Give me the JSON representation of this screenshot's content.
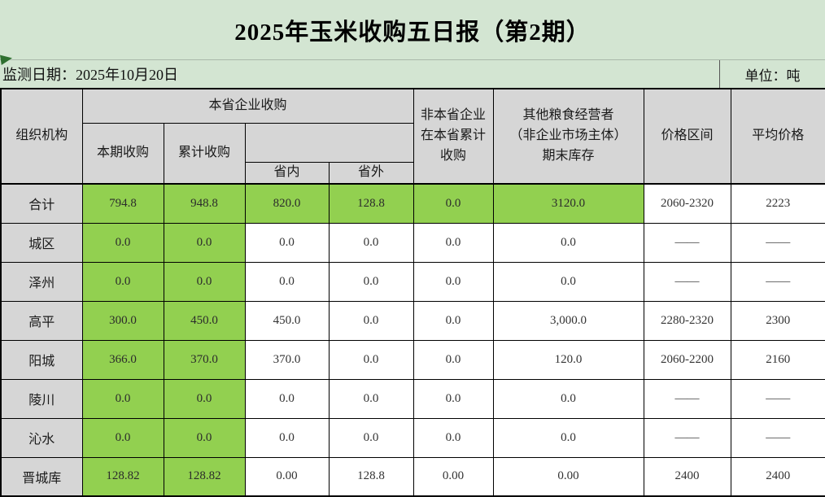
{
  "title": "2025年玉米收购五日报（第2期）",
  "meta": {
    "monitor_date": "监测日期：2025年10月20日",
    "unit": "单位：吨"
  },
  "colors": {
    "accent_green": "#92d050",
    "band_green": "#d3e5d2",
    "header_gray": "#d6d6d6"
  },
  "table": {
    "headers": {
      "org": "组织机构",
      "province_group": "本省企业收购",
      "current_purchase": "本期收购",
      "cumulative_purchase": "累计收购",
      "in_province": "省内",
      "out_province": "省外",
      "non_province": "非本省企业\n在本省累计\n收购",
      "other_operators": "其他粮食经营者\n（非企业市场主体）\n期末库存",
      "price_range": "价格区间",
      "avg_price": "平均价格"
    },
    "rows": [
      {
        "name": "合计",
        "values": [
          "794.8",
          "948.8",
          "820.0",
          "128.8",
          "0.0",
          "3120.0",
          "2060-2320",
          "2223"
        ],
        "green": [
          0,
          1,
          2,
          3,
          4,
          5
        ]
      },
      {
        "name": "城区",
        "values": [
          "0.0",
          "0.0",
          "0.0",
          "0.0",
          "0.0",
          "0.0",
          "——",
          "——"
        ],
        "green": [
          0,
          1
        ]
      },
      {
        "name": "泽州",
        "values": [
          "0.0",
          "0.0",
          "0.0",
          "0.0",
          "0.0",
          "0.0",
          "——",
          "——"
        ],
        "green": [
          0,
          1
        ]
      },
      {
        "name": "高平",
        "values": [
          "300.0",
          "450.0",
          "450.0",
          "0.0",
          "0.0",
          "3,000.0",
          "2280-2320",
          "2300"
        ],
        "green": [
          0,
          1
        ]
      },
      {
        "name": "阳城",
        "values": [
          "366.0",
          "370.0",
          "370.0",
          "0.0",
          "0.0",
          "120.0",
          "2060-2200",
          "2160"
        ],
        "green": [
          0,
          1
        ]
      },
      {
        "name": "陵川",
        "values": [
          "0.0",
          "0.0",
          "0.0",
          "0.0",
          "0.0",
          "0.0",
          "——",
          "——"
        ],
        "green": [
          0,
          1
        ]
      },
      {
        "name": "沁水",
        "values": [
          "0.0",
          "0.0",
          "0.0",
          "0.0",
          "0.0",
          "0.0",
          "——",
          "——"
        ],
        "green": [
          0,
          1
        ]
      },
      {
        "name": "晋城库",
        "values": [
          "128.82",
          "128.82",
          "0.00",
          "128.8",
          "0.00",
          "0.00",
          "2400",
          "2400"
        ],
        "green": [
          0,
          1
        ]
      }
    ]
  }
}
